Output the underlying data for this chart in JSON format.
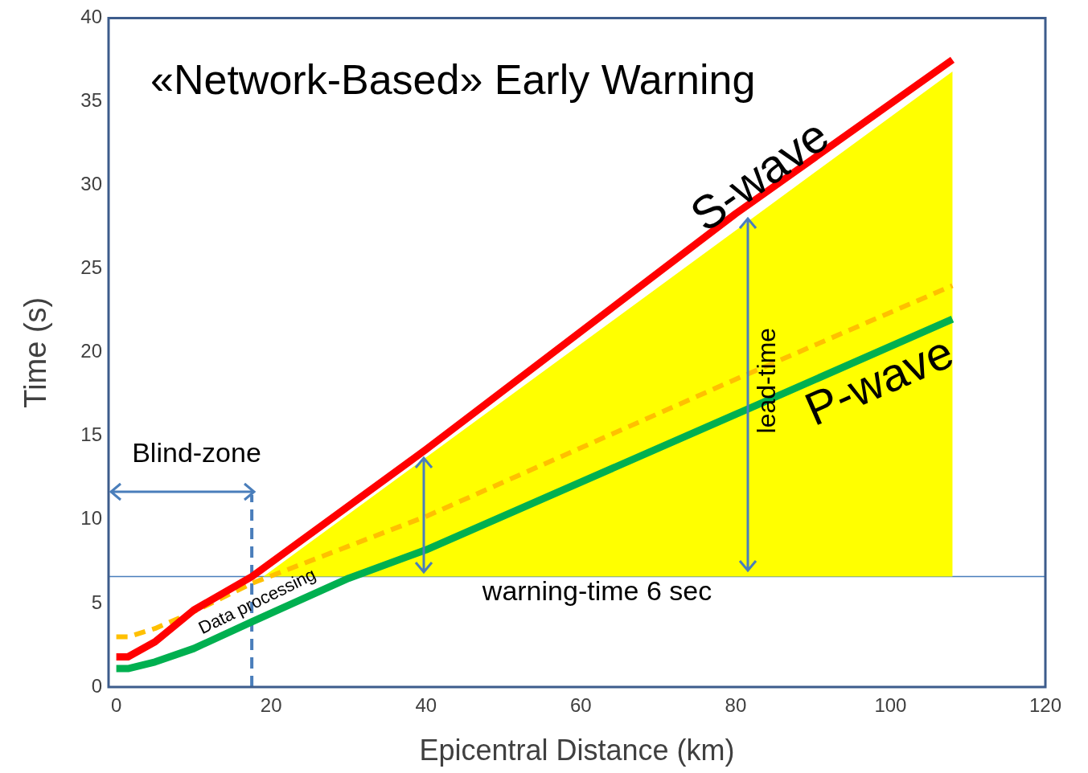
{
  "chart_data": {
    "type": "line",
    "title": "«Network-Based» Early Warning",
    "xlabel": "Epicentral Distance (km)",
    "ylabel": "Time (s)",
    "xlim": [
      -1,
      120
    ],
    "xticks": [
      0,
      20,
      40,
      60,
      80,
      100,
      120
    ],
    "ylim": [
      0,
      40
    ],
    "yticks": [
      0,
      5,
      10,
      15,
      20,
      25,
      30,
      35,
      40
    ],
    "grid": false,
    "legend": false,
    "marker": "none",
    "series": [
      {
        "type": "area",
        "color": "#ffff00",
        "x": [
          19,
          108,
          108
        ],
        "values": [
          6.6,
          36.8,
          6.6
        ]
      },
      {
        "name": "S-wave",
        "color": "#ff0000",
        "x": [
          0,
          1.5,
          5,
          10,
          17.5,
          40,
          80,
          108
        ],
        "values": [
          1.8,
          1.8,
          2.7,
          4.6,
          6.6,
          14.2,
          28.3,
          37.5
        ]
      },
      {
        "name": "P-wave",
        "color": "#00b050",
        "x": [
          0,
          1.5,
          5,
          10,
          17.5,
          30,
          40,
          80,
          108
        ],
        "values": [
          1.1,
          1.1,
          1.5,
          2.3,
          3.9,
          6.5,
          8.2,
          16.3,
          22.0
        ]
      },
      {
        "color": "#ffc000",
        "line_style": "dashed",
        "x": [
          0,
          1.5,
          5,
          10,
          17.5,
          40,
          80,
          108
        ],
        "values": [
          3.0,
          3.0,
          3.5,
          4.5,
          6.2,
          10.2,
          18.4,
          24.0
        ]
      },
      {
        "color": "#4a7ebb",
        "line_style": "dashed",
        "x": [
          17.5,
          17.5
        ],
        "values": [
          0,
          11.5
        ]
      }
    ],
    "ref_lines": [
      {
        "axis": "y",
        "value": 6.6,
        "label": "warning-time 6 sec",
        "color": "#4a7ebb"
      }
    ],
    "annotations": [
      "Blind-zone",
      "Data processing",
      "lead-time"
    ]
  }
}
